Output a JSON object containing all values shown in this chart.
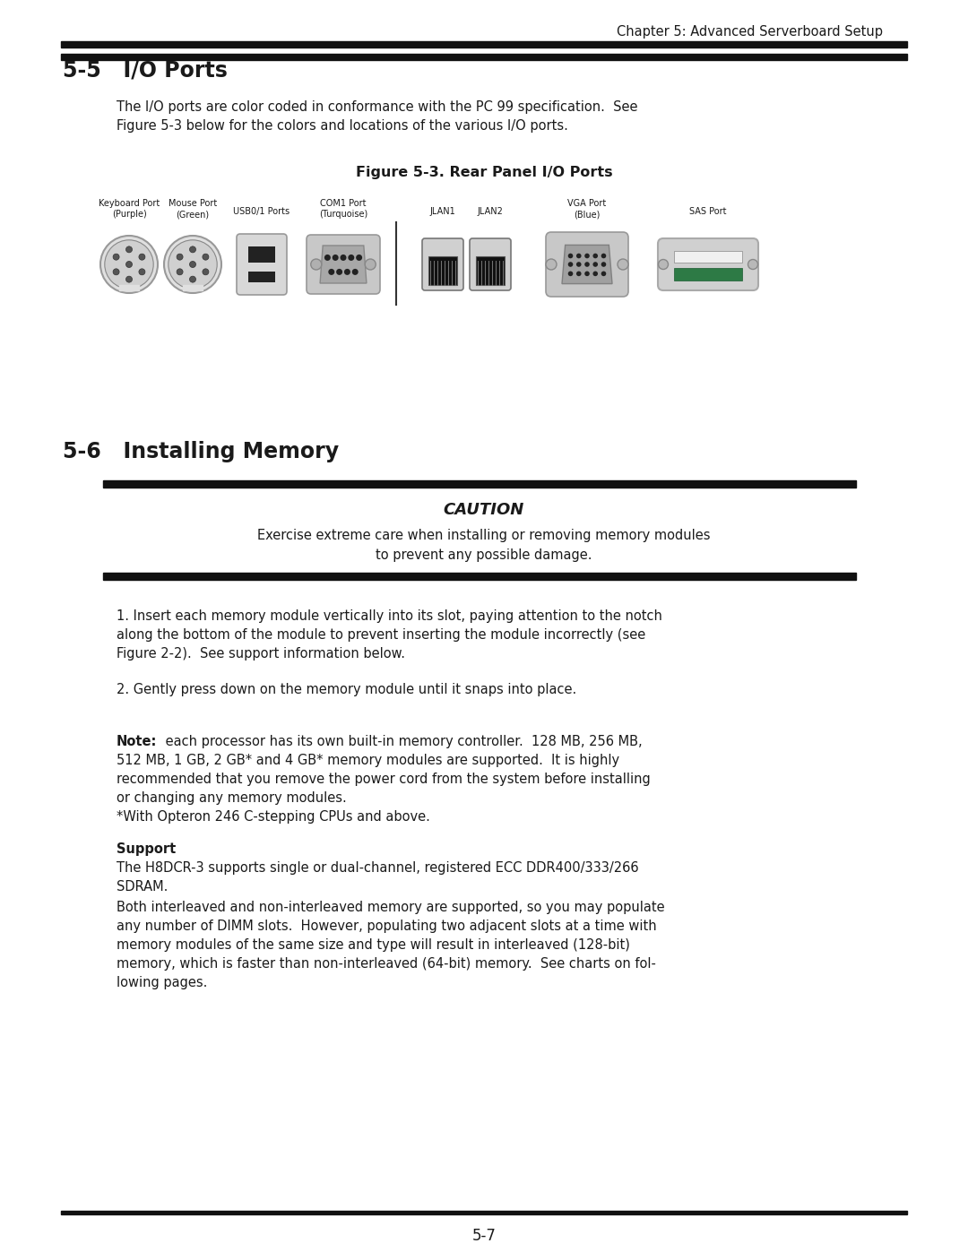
{
  "page_title": "Chapter 5: Advanced Serverboard Setup",
  "section_55_title": "5-5   I/O Ports",
  "body1_line1": "The I/O ports are color coded in conformance with the PC 99 specification.  See",
  "body1_line2": "Figure 5-3 below for the colors and locations of the various I/O ports.",
  "figure_title": "Figure 5-3. Rear Panel I/O Ports",
  "section_56_title": "5-6   Installing Memory",
  "caution_title": "CAUTION",
  "caution_line1": "Exercise extreme care when installing or removing memory modules",
  "caution_line2": "to prevent any possible damage.",
  "p1_line1": "1. Insert each memory module vertically into its slot, paying attention to the notch",
  "p1_line2": "along the bottom of the module to prevent inserting the module incorrectly (see",
  "p1_line3": "Figure 2-2).  See support information below.",
  "p2": "2. Gently press down on the memory module until it snaps into place.",
  "note_line1_rest": " each processor has its own built-in memory controller.  128 MB, 256 MB,",
  "note_line2": "512 MB, 1 GB, 2 GB* and 4 GB* memory modules are supported.  It is highly",
  "note_line3": "recommended that you remove the power cord from the system before installing",
  "note_line4": "or changing any memory modules.",
  "note_line5": "*With Opteron 246 C-stepping CPUs and above.",
  "support_title": "Support",
  "supp_line1": "The H8DCR-3 supports single or dual-channel, registered ECC DDR400/333/266",
  "supp_line2": "SDRAM.",
  "supp_line3": "Both interleaved and non-interleaved memory are supported, so you may populate",
  "supp_line4": "any number of DIMM slots.  However, populating two adjacent slots at a time with",
  "supp_line5": "memory modules of the same size and type will result in interleaved (128-bit)",
  "supp_line6": "memory, which is faster than non-interleaved (64-bit) memory.  See charts on fol-",
  "supp_line7": "lowing pages.",
  "page_number": "5-7",
  "bg_color": "#ffffff",
  "text_color": "#1a1a1a"
}
